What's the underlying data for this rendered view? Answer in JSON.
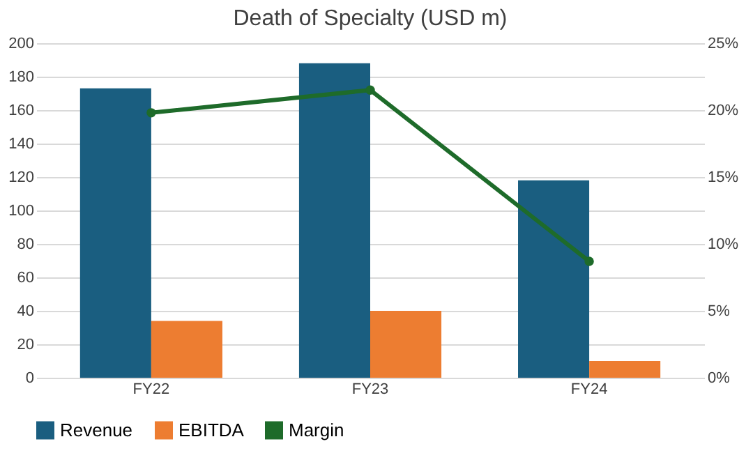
{
  "chart_data": {
    "type": "bar",
    "title": "Death of Specialty (USD m)",
    "categories": [
      "FY22",
      "FY23",
      "FY24"
    ],
    "series": [
      {
        "name": "Revenue",
        "color": "#1a5e80",
        "values": [
          173,
          188,
          118
        ]
      },
      {
        "name": "EBITDA",
        "color": "#ed7d31",
        "values": [
          34,
          40,
          10
        ]
      },
      {
        "name": "Margin",
        "color": "#1e6b2a",
        "values": [
          19.8,
          21.5,
          8.7
        ],
        "type": "line",
        "axis": "y2",
        "marker": "circle"
      }
    ],
    "ylim": [
      0,
      200
    ],
    "yticks": [
      0,
      20,
      40,
      60,
      80,
      100,
      120,
      140,
      160,
      180,
      200
    ],
    "y2lim": [
      0,
      25
    ],
    "y2ticks": [
      {
        "value": 0,
        "label": "0%"
      },
      {
        "value": 5,
        "label": "5%"
      },
      {
        "value": 10,
        "label": "10%"
      },
      {
        "value": 15,
        "label": "15%"
      },
      {
        "value": 20,
        "label": "20%"
      },
      {
        "value": 25,
        "label": "25%"
      }
    ],
    "grid": "y",
    "legend": "bottom"
  }
}
